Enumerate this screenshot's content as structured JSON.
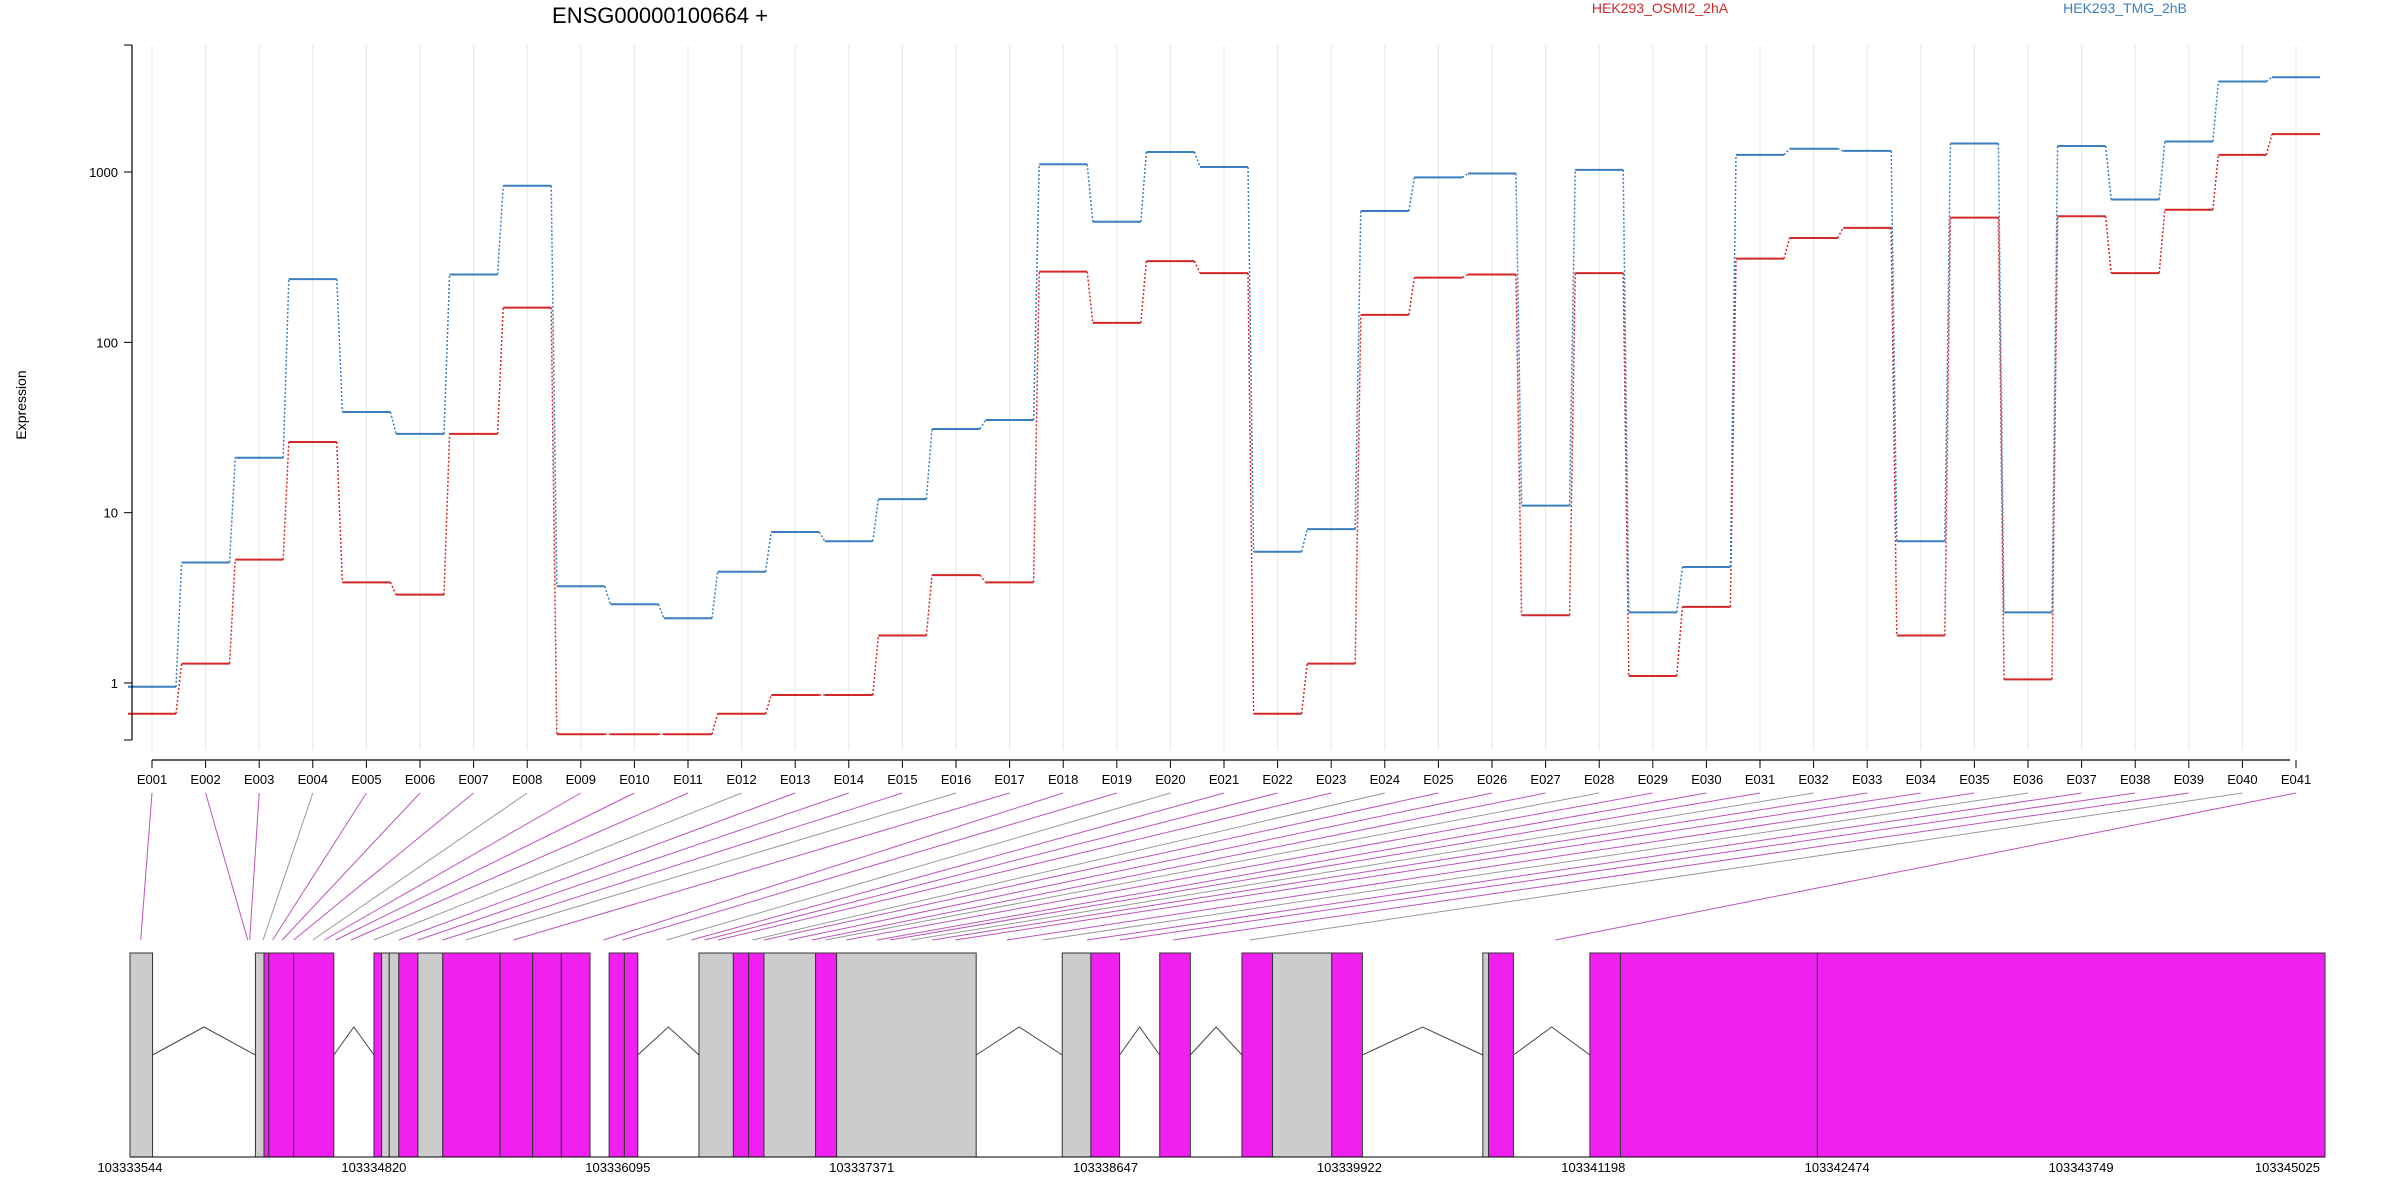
{
  "chart_data": {
    "type": "line",
    "title": "ENSG00000100664 +",
    "ylabel": "Expression",
    "xlabel": "",
    "scale": "log",
    "ylim": [
      0.45,
      5000
    ],
    "yticks": [
      {
        "value": 1,
        "label": "1"
      },
      {
        "value": 10,
        "label": "10"
      },
      {
        "value": 100,
        "label": "100"
      },
      {
        "value": 1000,
        "label": "1000"
      }
    ],
    "categories": [
      "E001",
      "E002",
      "E003",
      "E004",
      "E005",
      "E006",
      "E007",
      "E008",
      "E009",
      "E010",
      "E011",
      "E012",
      "E013",
      "E014",
      "E015",
      "E016",
      "E017",
      "E018",
      "E019",
      "E020",
      "E021",
      "E022",
      "E023",
      "E024",
      "E025",
      "E026",
      "E027",
      "E028",
      "E029",
      "E030",
      "E031",
      "E032",
      "E033",
      "E034",
      "E035",
      "E036",
      "E037",
      "E038",
      "E039",
      "E040",
      "E041"
    ],
    "series": [
      {
        "name": "HEK293_OSMI2_2hA",
        "color": "#d62728",
        "values": [
          0.66,
          1.3,
          5.3,
          26,
          3.9,
          3.3,
          29,
          160,
          0.5,
          0.5,
          0.5,
          0.66,
          0.85,
          0.85,
          1.9,
          4.3,
          3.9,
          260,
          130,
          300,
          255,
          0.66,
          1.3,
          145,
          240,
          250,
          2.5,
          255,
          1.1,
          2.8,
          310,
          410,
          470,
          1.9,
          540,
          1.05,
          550,
          255,
          600,
          1260,
          1670
        ]
      },
      {
        "name": "HEK293_TMG_2hB",
        "color": "#3a7ec1",
        "values": [
          0.95,
          5.1,
          21,
          235,
          39,
          29,
          250,
          830,
          3.7,
          2.9,
          2.4,
          4.5,
          7.7,
          6.8,
          12,
          31,
          35,
          1110,
          510,
          1310,
          1070,
          5.9,
          8,
          590,
          930,
          980,
          11,
          1030,
          2.6,
          4.8,
          1260,
          1370,
          1330,
          6.8,
          1470,
          2.6,
          1420,
          690,
          1510,
          3400,
          3600
        ]
      }
    ],
    "legend_position": "top",
    "grid": true,
    "gene_model": {
      "coord_range": [
        103333544,
        103345025
      ],
      "coord_labels": [
        "103333544",
        "103334820",
        "103336095",
        "103337371",
        "103338647",
        "103339922",
        "103341198",
        "103342474",
        "103343749",
        "103345025"
      ],
      "connector_targets": [
        103333600,
        103334160,
        103334170,
        103334240,
        103334290,
        103334340,
        103334400,
        103334500,
        103334560,
        103334620,
        103334700,
        103334820,
        103334950,
        103335050,
        103335180,
        103335300,
        103335550,
        103336020,
        103336120,
        103336350,
        103336480,
        103336550,
        103336620,
        103336800,
        103336860,
        103336990,
        103337110,
        103337180,
        103337290,
        103337450,
        103337520,
        103337630,
        103337740,
        103337860,
        103338130,
        103338320,
        103338550,
        103338720,
        103339000,
        103339400,
        103341000
      ],
      "exons": [
        {
          "start": 103333544,
          "end": 103333662,
          "color": "#cccccc"
        },
        {
          "start": 103334200,
          "end": 103334245,
          "color": "#cccccc"
        },
        {
          "start": 103334245,
          "end": 103334270,
          "color": "#f020f0"
        },
        {
          "start": 103334270,
          "end": 103334400,
          "color": "#f020f0"
        },
        {
          "start": 103334400,
          "end": 103334610,
          "color": "#f020f0"
        },
        {
          "start": 103334820,
          "end": 103334860,
          "color": "#f020f0"
        },
        {
          "start": 103334860,
          "end": 103334900,
          "color": "#cccccc"
        },
        {
          "start": 103334900,
          "end": 103334950,
          "color": "#cccccc"
        },
        {
          "start": 103334950,
          "end": 103335050,
          "color": "#f020f0"
        },
        {
          "start": 103335050,
          "end": 103335180,
          "color": "#cccccc"
        },
        {
          "start": 103335180,
          "end": 103335480,
          "color": "#f020f0"
        },
        {
          "start": 103335480,
          "end": 103335650,
          "color": "#f020f0"
        },
        {
          "start": 103335650,
          "end": 103335800,
          "color": "#f020f0"
        },
        {
          "start": 103335800,
          "end": 103335950,
          "color": "#f020f0"
        },
        {
          "start": 103336050,
          "end": 103336130,
          "color": "#f020f0"
        },
        {
          "start": 103336130,
          "end": 103336200,
          "color": "#f020f0"
        },
        {
          "start": 103336520,
          "end": 103336700,
          "color": "#cccccc"
        },
        {
          "start": 103336700,
          "end": 103336780,
          "color": "#f020f0"
        },
        {
          "start": 103336780,
          "end": 103336860,
          "color": "#f020f0"
        },
        {
          "start": 103336860,
          "end": 103337130,
          "color": "#cccccc"
        },
        {
          "start": 103337130,
          "end": 103337240,
          "color": "#f020f0"
        },
        {
          "start": 103337240,
          "end": 103337970,
          "color": "#cccccc"
        },
        {
          "start": 103338420,
          "end": 103338570,
          "color": "#cccccc"
        },
        {
          "start": 103338570,
          "end": 103338720,
          "color": "#f020f0"
        },
        {
          "start": 103338930,
          "end": 103339090,
          "color": "#f020f0"
        },
        {
          "start": 103339360,
          "end": 103339520,
          "color": "#f020f0"
        },
        {
          "start": 103339520,
          "end": 103339830,
          "color": "#cccccc"
        },
        {
          "start": 103339830,
          "end": 103339990,
          "color": "#f020f0"
        },
        {
          "start": 103340620,
          "end": 103340650,
          "color": "#cccccc"
        },
        {
          "start": 103340650,
          "end": 103340780,
          "color": "#f020f0"
        },
        {
          "start": 103341180,
          "end": 103341340,
          "color": "#f020f0"
        },
        {
          "start": 103341340,
          "end": 103342370,
          "color": "#f020f0"
        },
        {
          "start": 103342370,
          "end": 103345025,
          "color": "#f020f0"
        }
      ],
      "introns": [
        [
          103333662,
          103334200
        ],
        [
          103334610,
          103334820
        ],
        [
          103336200,
          103336520
        ],
        [
          103337970,
          103338420
        ],
        [
          103338720,
          103338930
        ],
        [
          103339090,
          103339360
        ],
        [
          103339990,
          103340620
        ],
        [
          103340780,
          103341180
        ]
      ]
    }
  }
}
